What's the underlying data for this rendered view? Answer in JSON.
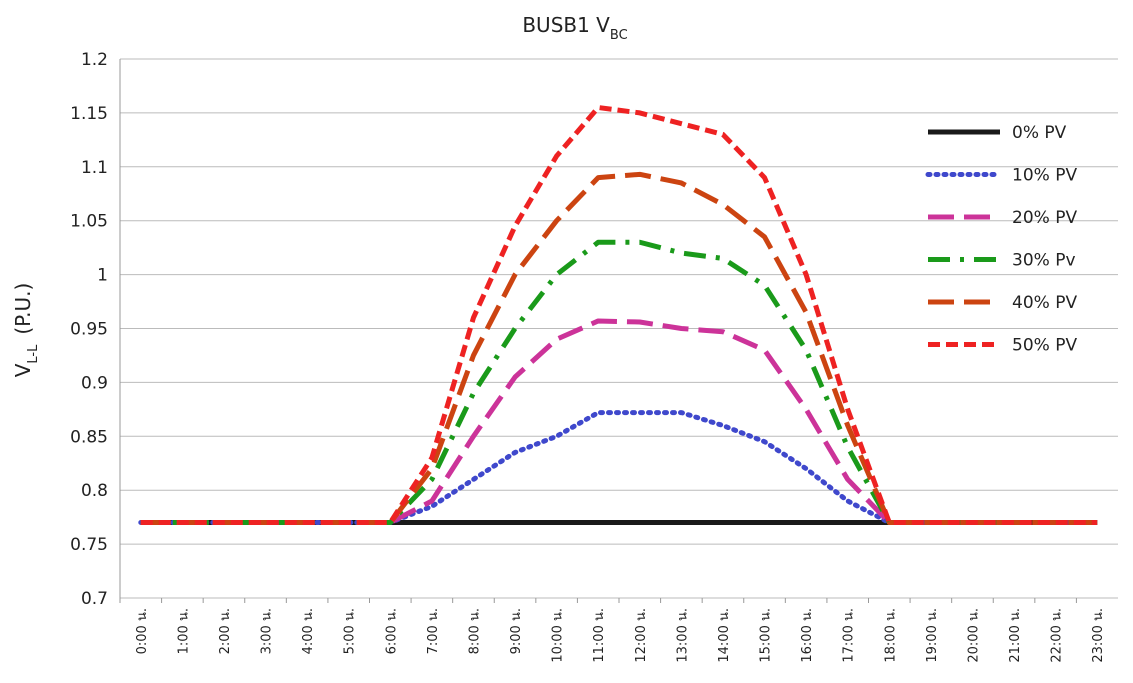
{
  "chart_data": {
    "type": "line",
    "title": "BUSB1 V",
    "title_subscript": "BC",
    "y_label": "V",
    "y_label_subscript": "L-L",
    "y_label_unit": "(P.U.)",
    "categories": [
      "0:00 น.",
      "1:00 น.",
      "2:00 น.",
      "3:00 น.",
      "4:00 น.",
      "5:00 น.",
      "6:00 น.",
      "7:00 น.",
      "8:00 น.",
      "9:00 น.",
      "10:00 น.",
      "11:00 น.",
      "12:00 น.",
      "13:00 น.",
      "14:00 น.",
      "15:00 น.",
      "16:00 น.",
      "17:00 น.",
      "18:00 น.",
      "19:00 น.",
      "20:00 น.",
      "21:00 น.",
      "22:00 น.",
      "23:00 น."
    ],
    "series": [
      {
        "name": "0% PV",
        "color": "#1a1a1a",
        "dash": "solid",
        "values": [
          0.77,
          0.77,
          0.77,
          0.77,
          0.77,
          0.77,
          0.77,
          0.77,
          0.77,
          0.77,
          0.77,
          0.77,
          0.77,
          0.77,
          0.77,
          0.77,
          0.77,
          0.77,
          0.77,
          0.77,
          0.77,
          0.77,
          0.77,
          0.77
        ]
      },
      {
        "name": "10% PV",
        "color": "#3f48cc",
        "dash": "dotted",
        "values": [
          0.77,
          0.77,
          0.77,
          0.77,
          0.77,
          0.77,
          0.77,
          0.785,
          0.81,
          0.835,
          0.85,
          0.872,
          0.872,
          0.872,
          0.86,
          0.845,
          0.82,
          0.79,
          0.77,
          0.77,
          0.77,
          0.77,
          0.77,
          0.77
        ]
      },
      {
        "name": "20% PV",
        "color": "#cc3399",
        "dash": "longdash",
        "values": [
          0.77,
          0.77,
          0.77,
          0.77,
          0.77,
          0.77,
          0.77,
          0.79,
          0.85,
          0.905,
          0.94,
          0.957,
          0.956,
          0.95,
          0.947,
          0.93,
          0.875,
          0.81,
          0.77,
          0.77,
          0.77,
          0.77,
          0.77,
          0.77
        ]
      },
      {
        "name": "30% Pv",
        "color": "#1a9a1a",
        "dash": "dashdot",
        "values": [
          0.77,
          0.77,
          0.77,
          0.77,
          0.77,
          0.77,
          0.77,
          0.81,
          0.89,
          0.95,
          1.0,
          1.03,
          1.03,
          1.02,
          1.015,
          0.99,
          0.93,
          0.84,
          0.77,
          0.77,
          0.77,
          0.77,
          0.77,
          0.77
        ]
      },
      {
        "name": "40% PV",
        "color": "#cc4411",
        "dash": "longdash",
        "values": [
          0.77,
          0.77,
          0.77,
          0.77,
          0.77,
          0.77,
          0.77,
          0.82,
          0.925,
          1.0,
          1.05,
          1.09,
          1.093,
          1.085,
          1.065,
          1.035,
          0.965,
          0.86,
          0.77,
          0.77,
          0.77,
          0.77,
          0.77,
          0.77
        ]
      },
      {
        "name": "50% PV",
        "color": "#ee2222",
        "dash": "dash",
        "values": [
          0.77,
          0.77,
          0.77,
          0.77,
          0.77,
          0.77,
          0.77,
          0.83,
          0.96,
          1.045,
          1.11,
          1.155,
          1.15,
          1.14,
          1.13,
          1.09,
          1.0,
          0.875,
          0.77,
          0.77,
          0.77,
          0.77,
          0.77,
          0.77
        ]
      }
    ],
    "ylim": [
      0.7,
      1.2
    ],
    "yticks": [
      0.7,
      0.75,
      0.8,
      0.85,
      0.9,
      0.95,
      1,
      1.05,
      1.1,
      1.15,
      1.2
    ],
    "grid": true,
    "legend": "top-right"
  }
}
